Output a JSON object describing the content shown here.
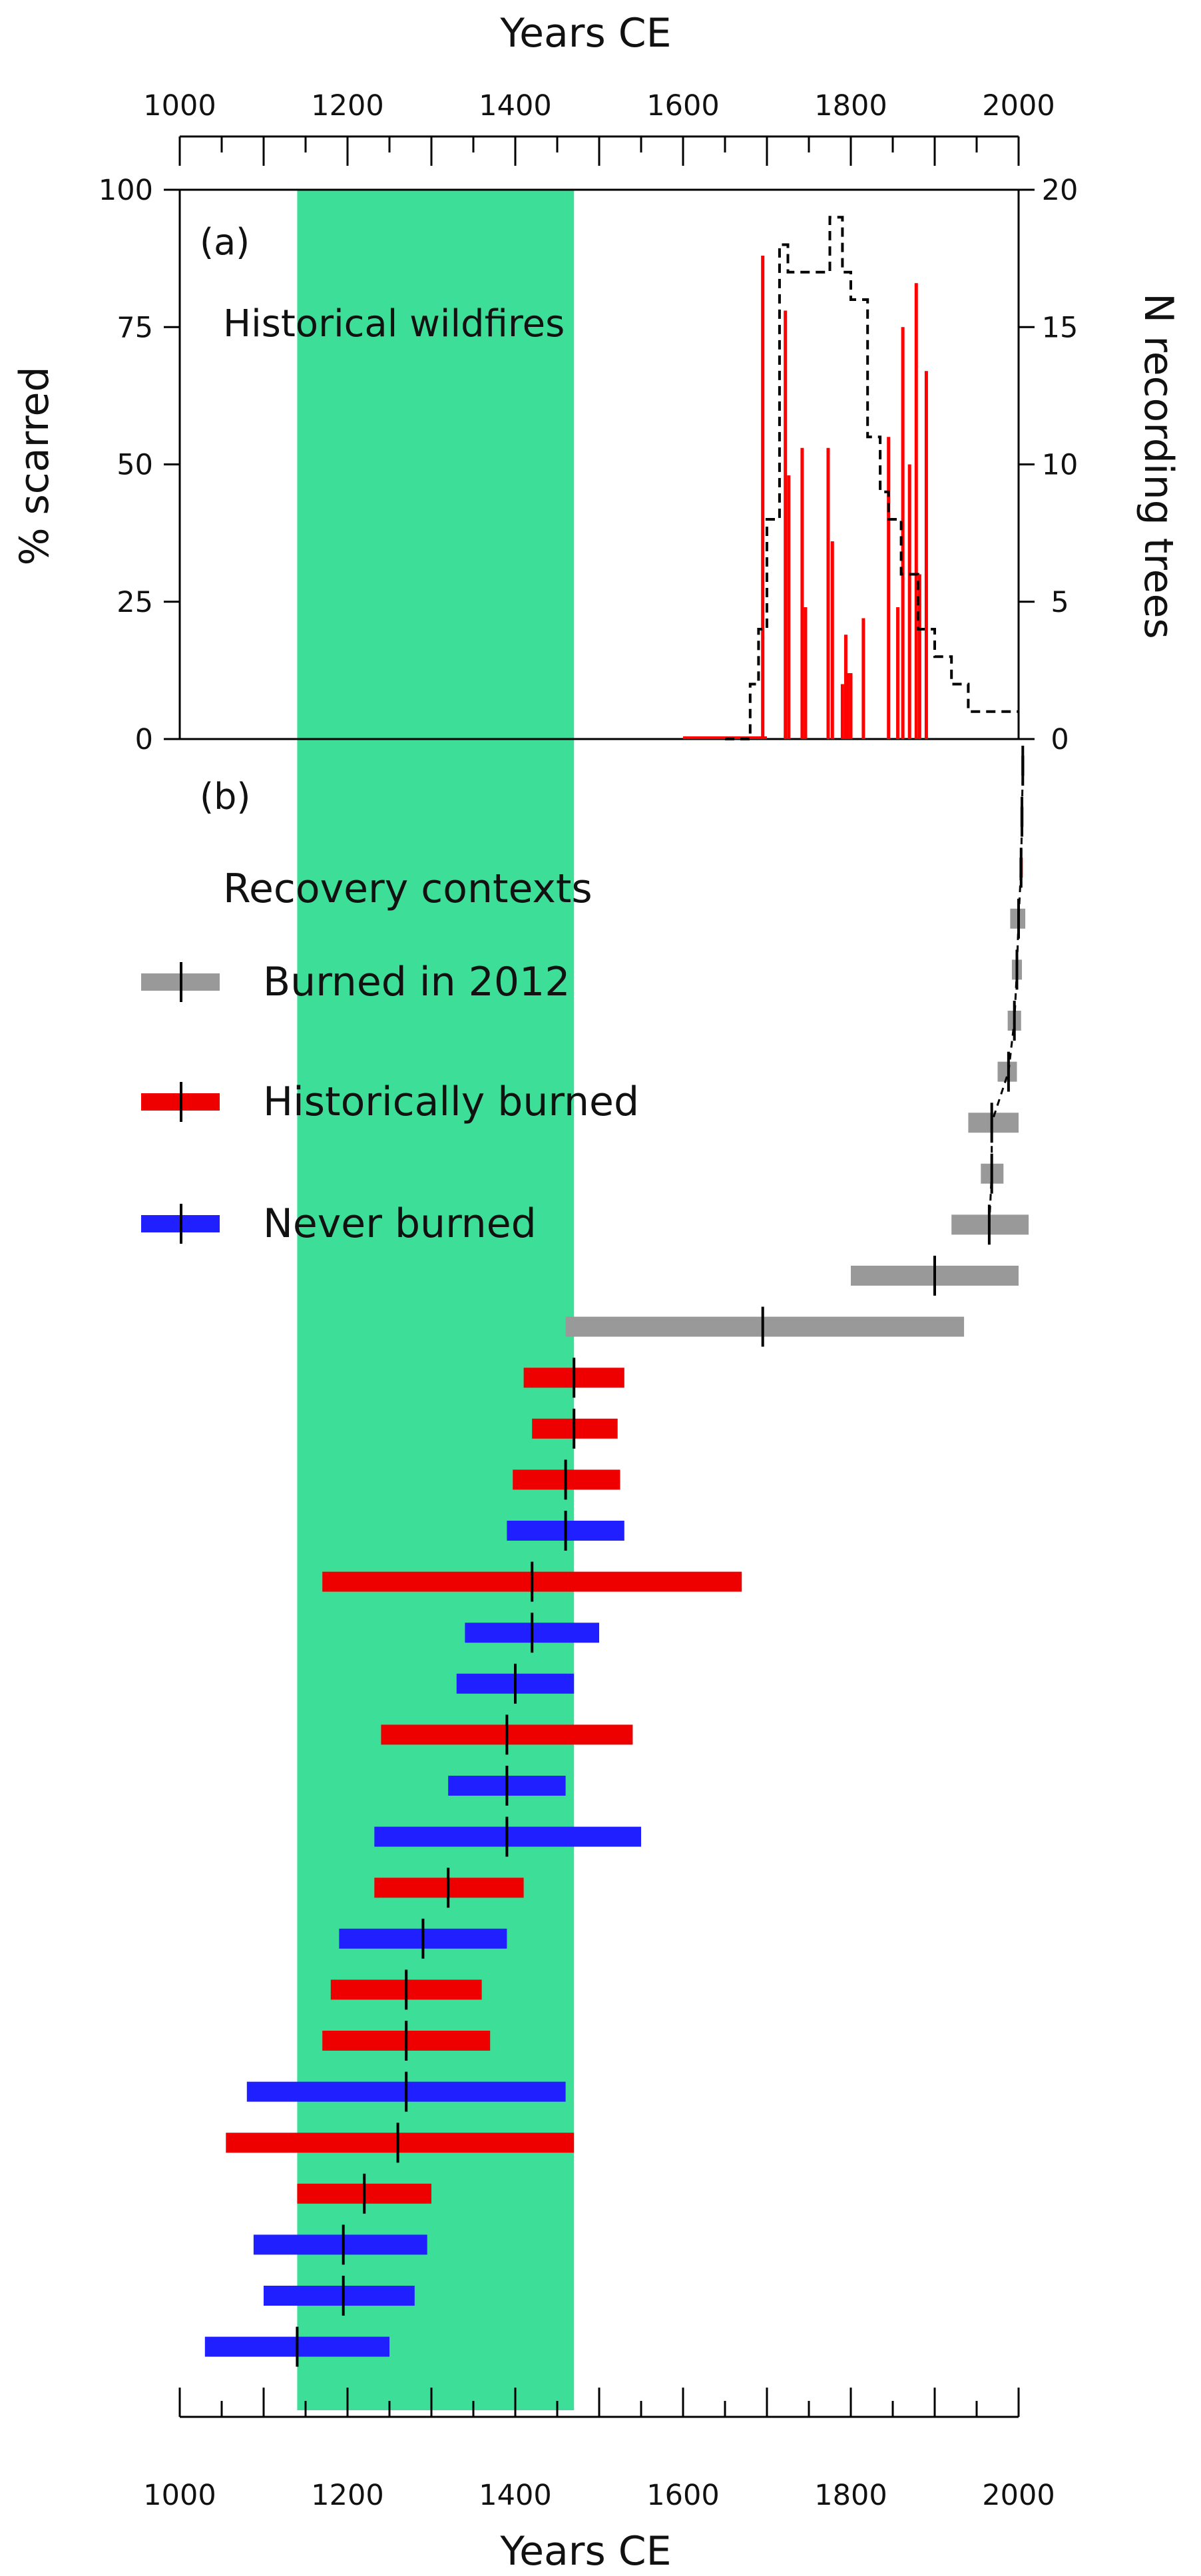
{
  "chart_data": [
    {
      "panel": "(a)",
      "type": "line",
      "title": "Historical wildfires",
      "xlabel": "Years CE",
      "ylabel": "% scarred",
      "y2label": "N recording trees",
      "xlim": [
        1000,
        2000
      ],
      "ylim": [
        0,
        100
      ],
      "y2lim": [
        0,
        20
      ],
      "x_ticks": [
        "1000",
        "1200",
        "1400",
        "1600",
        "1800",
        "2000"
      ],
      "y_ticks": [
        "0",
        "25",
        "50",
        "75",
        "100"
      ],
      "y2_ticks": [
        "0",
        "5",
        "10",
        "15",
        "20"
      ],
      "highlight_band": {
        "x0": 1140,
        "x1": 1470,
        "color": "#3ddf98"
      },
      "fire_years": {
        "color": "#ff0000",
        "x": [
          1695,
          1722,
          1726,
          1742,
          1746,
          1773,
          1778,
          1790,
          1794,
          1796,
          1800,
          1815,
          1845,
          1856,
          1862,
          1870,
          1878,
          1882,
          1890
        ],
        "values": [
          88,
          78,
          48,
          53,
          24,
          53,
          36,
          10,
          19,
          12,
          12,
          22,
          55,
          24,
          75,
          50,
          83,
          30,
          67
        ]
      },
      "recording_trees": {
        "color": "#000000",
        "x": [
          1650,
          1680,
          1690,
          1700,
          1715,
          1725,
          1760,
          1775,
          1790,
          1800,
          1820,
          1835,
          1845,
          1860,
          1880,
          1900,
          1920,
          1940,
          1960,
          1990
        ],
        "n": [
          0,
          2,
          4,
          8,
          18,
          17,
          17,
          19,
          17,
          16,
          11,
          9,
          8,
          6,
          4,
          3,
          2,
          1,
          1,
          1
        ]
      }
    },
    {
      "panel": "(b)",
      "type": "range",
      "xlabel": "Years CE",
      "xlim": [
        1000,
        2000
      ],
      "x_ticks": [
        "1000",
        "1200",
        "1400",
        "1600",
        "1800",
        "2000"
      ],
      "legend_title": "Recovery contexts",
      "legend": [
        {
          "key": "burned2012",
          "label": "Burned in 2012",
          "color": "#999999"
        },
        {
          "key": "historical",
          "label": "Historically burned",
          "color": "#ee0000"
        },
        {
          "key": "never",
          "label": "Never burned",
          "color": "#1f1fff"
        }
      ],
      "intervals": [
        {
          "group": "burned2012",
          "start": 2003,
          "end": 2007,
          "median": 2005
        },
        {
          "group": "burned2012",
          "start": 2002,
          "end": 2006,
          "median": 2004
        },
        {
          "group": "historical",
          "start": 2001,
          "end": 2005,
          "median": 2003
        },
        {
          "group": "burned2012",
          "start": 1990,
          "end": 2008,
          "median": 2000
        },
        {
          "group": "burned2012",
          "start": 1992,
          "end": 2004,
          "median": 1998
        },
        {
          "group": "burned2012",
          "start": 1987,
          "end": 2003,
          "median": 1995
        },
        {
          "group": "burned2012",
          "start": 1975,
          "end": 1998,
          "median": 1988
        },
        {
          "group": "burned2012",
          "start": 1940,
          "end": 2000,
          "median": 1968
        },
        {
          "group": "burned2012",
          "start": 1955,
          "end": 1982,
          "median": 1968
        },
        {
          "group": "burned2012",
          "start": 1920,
          "end": 2012,
          "median": 1965
        },
        {
          "group": "burned2012",
          "start": 1800,
          "end": 2000,
          "median": 1900
        },
        {
          "group": "burned2012",
          "start": 1460,
          "end": 1935,
          "median": 1695
        },
        {
          "group": "historical",
          "start": 1410,
          "end": 1530,
          "median": 1470
        },
        {
          "group": "historical",
          "start": 1420,
          "end": 1522,
          "median": 1470
        },
        {
          "group": "historical",
          "start": 1397,
          "end": 1525,
          "median": 1460
        },
        {
          "group": "never",
          "start": 1390,
          "end": 1530,
          "median": 1460
        },
        {
          "group": "historical",
          "start": 1170,
          "end": 1670,
          "median": 1420
        },
        {
          "group": "never",
          "start": 1340,
          "end": 1500,
          "median": 1420
        },
        {
          "group": "never",
          "start": 1330,
          "end": 1470,
          "median": 1400
        },
        {
          "group": "historical",
          "start": 1240,
          "end": 1540,
          "median": 1390
        },
        {
          "group": "never",
          "start": 1320,
          "end": 1460,
          "median": 1390
        },
        {
          "group": "never",
          "start": 1232,
          "end": 1550,
          "median": 1390
        },
        {
          "group": "historical",
          "start": 1232,
          "end": 1410,
          "median": 1320
        },
        {
          "group": "never",
          "start": 1190,
          "end": 1390,
          "median": 1290
        },
        {
          "group": "historical",
          "start": 1180,
          "end": 1360,
          "median": 1270
        },
        {
          "group": "historical",
          "start": 1170,
          "end": 1370,
          "median": 1270
        },
        {
          "group": "never",
          "start": 1080,
          "end": 1460,
          "median": 1270
        },
        {
          "group": "historical",
          "start": 1055,
          "end": 1470,
          "median": 1260
        },
        {
          "group": "historical",
          "start": 1140,
          "end": 1300,
          "median": 1220
        },
        {
          "group": "never",
          "start": 1088,
          "end": 1295,
          "median": 1195
        },
        {
          "group": "never",
          "start": 1100,
          "end": 1280,
          "median": 1195
        },
        {
          "group": "never",
          "start": 1030,
          "end": 1250,
          "median": 1140
        }
      ]
    }
  ]
}
